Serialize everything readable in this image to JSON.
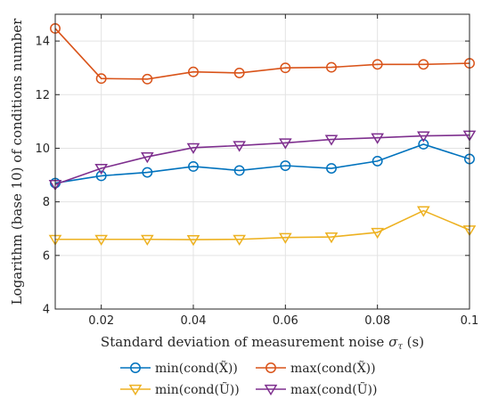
{
  "chart_data": {
    "type": "line",
    "xlabel": "Standard deviation of measurement noise σ_τ (s)",
    "ylabel": "Logarithm (base 10) of conditions number",
    "xlim": [
      0.01,
      0.1
    ],
    "ylim": [
      4,
      15
    ],
    "xticks": [
      0.02,
      0.04,
      0.06,
      0.08,
      0.1
    ],
    "xtick_labels": [
      "0.02",
      "0.04",
      "0.06",
      "0.08",
      "0.1"
    ],
    "yticks": [
      4,
      6,
      8,
      10,
      12,
      14
    ],
    "ytick_labels": [
      "4",
      "6",
      "8",
      "10",
      "12",
      "14"
    ],
    "grid": true,
    "legend_position": "bottom-outside",
    "x": [
      0.01,
      0.02,
      0.03,
      0.04,
      0.05,
      0.06,
      0.07,
      0.08,
      0.09,
      0.1
    ],
    "series": [
      {
        "name": "min(cond(X̃))",
        "color": "#0072BD",
        "marker": "circle",
        "values": [
          8.7,
          8.97,
          9.1,
          9.32,
          9.17,
          9.35,
          9.25,
          9.52,
          10.15,
          9.6
        ]
      },
      {
        "name": "max(cond(X̃))",
        "color": "#D95319",
        "marker": "circle",
        "values": [
          14.47,
          12.6,
          12.58,
          12.85,
          12.81,
          13.0,
          13.02,
          13.13,
          13.13,
          13.17
        ]
      },
      {
        "name": "min(cond(Ũ))",
        "color": "#EDB120",
        "marker": "triangle-down",
        "values": [
          6.6,
          6.6,
          6.6,
          6.59,
          6.6,
          6.67,
          6.69,
          6.86,
          7.67,
          6.95
        ]
      },
      {
        "name": "max(cond(Ũ))",
        "color": "#7E2F8E",
        "marker": "triangle-down",
        "values": [
          8.65,
          9.25,
          9.68,
          10.02,
          10.1,
          10.2,
          10.33,
          10.39,
          10.46,
          10.49
        ]
      }
    ]
  }
}
